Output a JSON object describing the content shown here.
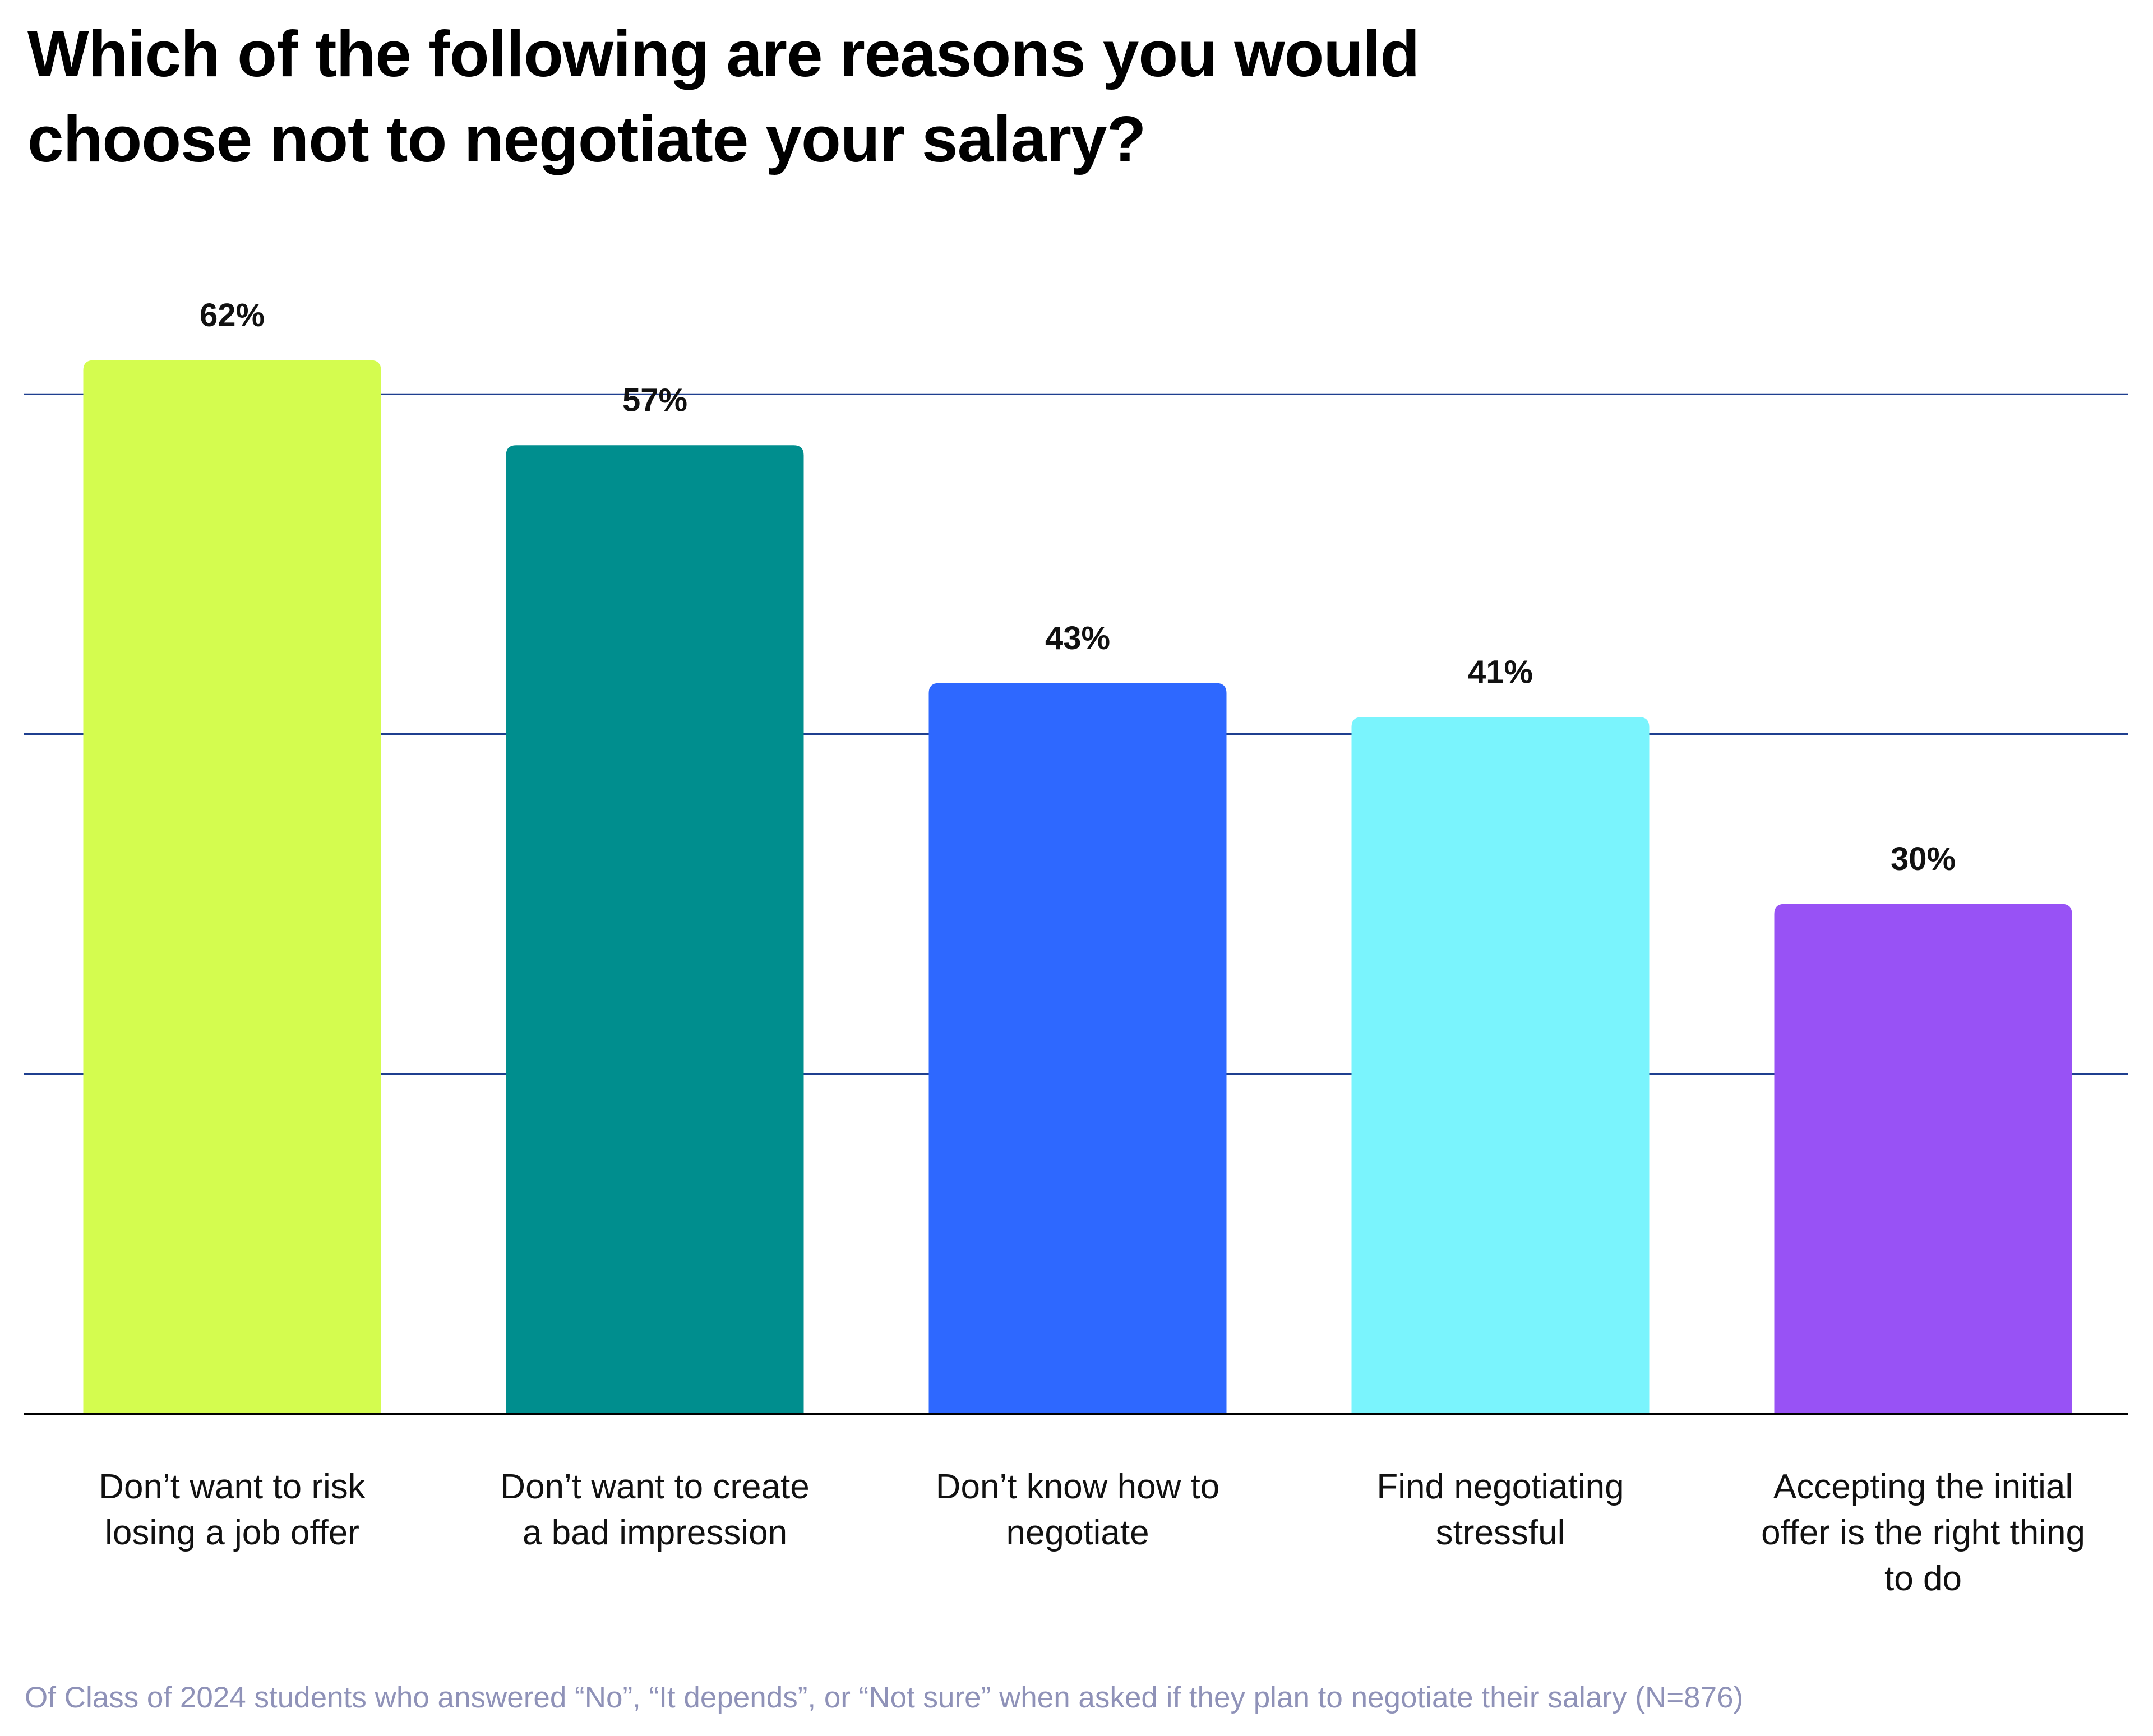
{
  "chart_data": {
    "type": "bar",
    "title": "Which of the following are reasons you would choose not to negotiate your salary?",
    "categories": [
      "Don’t want to risk losing a job offer",
      "Don’t want to create a bad impression",
      "Don’t know how to negotiate",
      "Find negotiating stressful",
      "Accepting the initial offer is the right thing to do"
    ],
    "values": [
      62,
      57,
      43,
      41,
      30
    ],
    "value_labels": [
      "62%",
      "57%",
      "43%",
      "41%",
      "30%"
    ],
    "colors": [
      "#d4fc4f",
      "#008e8e",
      "#2e68ff",
      "#7af4fd",
      "#9852f5"
    ],
    "ylim": [
      0,
      80
    ],
    "yticks": [
      20,
      40,
      60
    ],
    "grid": true,
    "footnote": "Of Class of 2024 students who answered “No”, “It depends”, or “Not sure” when asked if they plan to negotiate their salary (N=876)"
  }
}
